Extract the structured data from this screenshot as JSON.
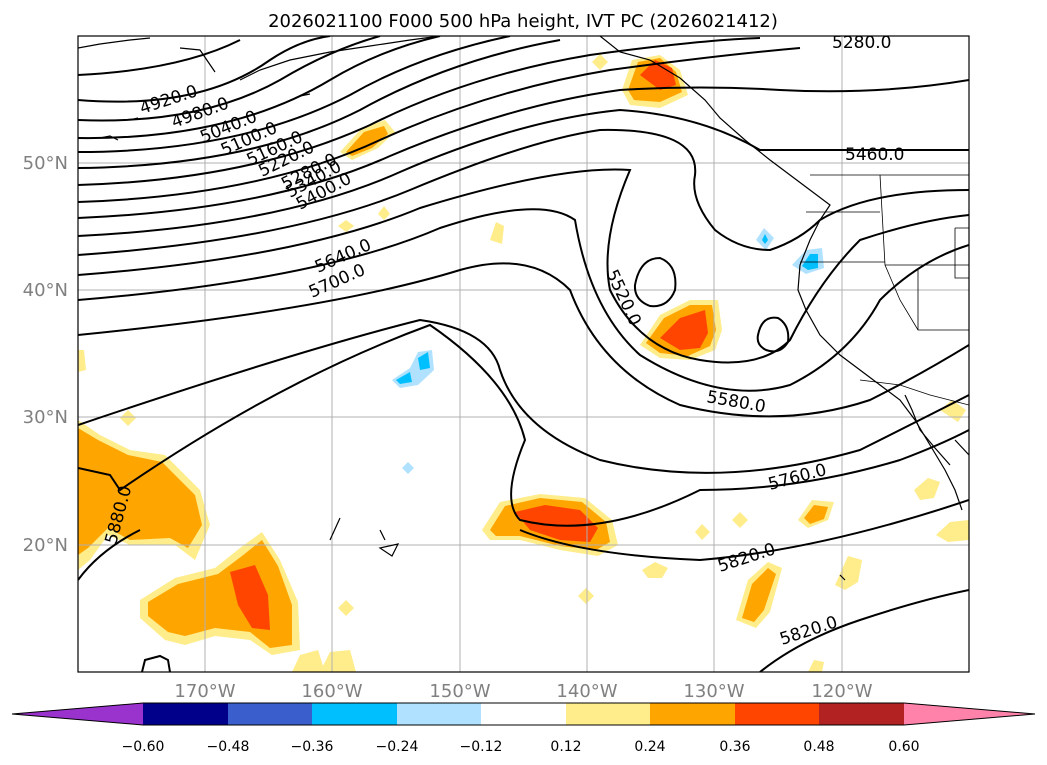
{
  "title": "2026021100 F000 500 hPa height, IVT PC (2026021412)",
  "map": {
    "lat_labels": [
      "50°N",
      "40°N",
      "30°N",
      "20°N"
    ],
    "lon_labels": [
      "170°W",
      "160°W",
      "150°W",
      "140°W",
      "130°W",
      "120°W"
    ],
    "contour_labels": [
      "4920.0",
      "4980.0",
      "5040.0",
      "5100.0",
      "5160.0",
      "5220.0",
      "5280.0",
      "5340.0",
      "5400.0",
      "5640.0",
      "5700.0",
      "5520.0",
      "5580.0",
      "5760.0",
      "5820.0",
      "5820.0",
      "5880.0",
      "5280.0",
      "5460.0"
    ]
  },
  "colorbar": {
    "ticks": [
      "−0.60",
      "−0.48",
      "−0.36",
      "−0.24",
      "−0.12",
      "0.12",
      "0.24",
      "0.36",
      "0.48",
      "0.60"
    ],
    "colors": [
      "#9a32cd",
      "#00008b",
      "#3a5fcd",
      "#00bfff",
      "#b0e2ff",
      "#ffffff",
      "#ffec8b",
      "#ffa500",
      "#ff4500",
      "#b22222",
      "#ff82ab"
    ]
  },
  "legend_colors": {
    "pos_low": "#ffec8b",
    "pos_mid": "#ffa500",
    "pos_high": "#ff4500",
    "neg_low": "#b0e2ff",
    "neg_mid": "#00bfff"
  }
}
